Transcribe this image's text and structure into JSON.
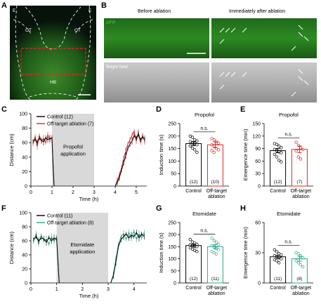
{
  "panels": {
    "A": {
      "letter": "A",
      "labels": {
        "e_left": "E",
        "e_right": "E",
        "ot_left": "OT",
        "ot_right": "OT",
        "hb": "HB"
      }
    },
    "B": {
      "letter": "B",
      "col_before": "Before ablation",
      "col_after": "Immediately after ablation",
      "row_gfp": "GFP",
      "row_bf": "Bright field"
    },
    "C": {
      "letter": "C"
    },
    "D": {
      "letter": "D"
    },
    "E": {
      "letter": "E"
    },
    "F": {
      "letter": "F"
    },
    "G": {
      "letter": "G"
    },
    "H": {
      "letter": "H"
    }
  },
  "colors": {
    "gfp": "#3aa52f",
    "control": "#000000",
    "propofol_ablation": "#e02424",
    "etomidate_ablation": "#2aa88a",
    "shade": "#d9d9d9"
  },
  "chart_data": [
    {
      "id": "C",
      "type": "line",
      "xlabel": "Time (h)",
      "ylabel": "Distance (cm)",
      "xticks": [
        0,
        1,
        2,
        3,
        4,
        5
      ],
      "yticks": [
        0,
        20,
        40,
        60,
        80,
        100
      ],
      "xlim": [
        0,
        5.5
      ],
      "ylim": [
        0,
        100
      ],
      "shade": {
        "x": [
          1,
          3
        ],
        "label": [
          "Propofol",
          "application"
        ]
      },
      "series": [
        {
          "name": "Control (12)",
          "color": "#000000",
          "x": [
            0.1,
            0.2,
            0.3,
            0.4,
            0.5,
            0.6,
            0.7,
            0.8,
            0.9,
            1.0,
            1.05,
            1.1,
            4.0,
            4.1,
            4.2,
            4.3,
            4.4,
            4.5,
            4.6,
            4.7,
            4.8,
            4.9,
            5.0,
            5.1,
            5.2,
            5.3,
            5.4
          ],
          "y": [
            62,
            65,
            60,
            66,
            63,
            61,
            67,
            64,
            66,
            65,
            30,
            0,
            0,
            5,
            12,
            22,
            32,
            42,
            52,
            58,
            62,
            70,
            66,
            72,
            64,
            68,
            65
          ]
        },
        {
          "name": "Off-target ablation (7)",
          "color": "#e02424",
          "x": [
            0.1,
            0.2,
            0.3,
            0.4,
            0.5,
            0.6,
            0.7,
            0.8,
            0.9,
            1.0,
            1.05,
            1.1,
            4.0,
            4.1,
            4.2,
            4.3,
            4.4,
            4.5,
            4.6,
            4.7,
            4.8,
            4.9,
            5.0,
            5.1,
            5.2,
            5.3,
            5.4
          ],
          "y": [
            58,
            68,
            55,
            70,
            62,
            66,
            60,
            71,
            64,
            68,
            32,
            0,
            0,
            8,
            15,
            25,
            38,
            48,
            58,
            64,
            70,
            76,
            62,
            74,
            60,
            70,
            62
          ]
        }
      ]
    },
    {
      "id": "D",
      "type": "bar",
      "title": "Propofol",
      "ylabel": "Induction time (s)",
      "yticks": [
        0,
        50,
        100,
        150,
        200,
        250
      ],
      "ylim": [
        0,
        250
      ],
      "categories": [
        [
          "Control"
        ],
        [
          "Off-target",
          "ablation"
        ]
      ],
      "counts": [
        "(12)",
        "(10)"
      ],
      "values": [
        170,
        165
      ],
      "errors": [
        8,
        12
      ],
      "colors": [
        "#000000",
        "#e02424"
      ],
      "sig": "n.s.",
      "points": [
        [
          200,
          195,
          185,
          180,
          178,
          172,
          170,
          165,
          160,
          152,
          145,
          135
        ],
        [
          190,
          185,
          178,
          172,
          165,
          160,
          150,
          145,
          142,
          135
        ]
      ]
    },
    {
      "id": "E",
      "type": "bar",
      "title": "Propofol",
      "ylabel": "Emergence time (min)",
      "yticks": [
        0,
        30,
        60,
        90,
        120,
        150
      ],
      "ylim": [
        0,
        150
      ],
      "categories": [
        [
          "Control"
        ],
        [
          "Off-target",
          "ablation"
        ]
      ],
      "counts": [
        "(12)",
        "(7)"
      ],
      "values": [
        85,
        88
      ],
      "errors": [
        5,
        8
      ],
      "colors": [
        "#000000",
        "#e02424"
      ],
      "sig": "n.s.",
      "points": [
        [
          102,
          100,
          96,
          92,
          88,
          85,
          82,
          80,
          76,
          70,
          62,
          58
        ],
        [
          105,
          98,
          92,
          88,
          84,
          70,
          65
        ]
      ]
    },
    {
      "id": "F",
      "type": "line",
      "xlabel": "Time (h)",
      "ylabel": "Distance (cm)",
      "xticks": [
        0,
        1,
        2,
        3,
        4
      ],
      "yticks": [
        0,
        20,
        40,
        60,
        80,
        100
      ],
      "xlim": [
        0,
        4.5
      ],
      "ylim": [
        0,
        100
      ],
      "shade": {
        "x": [
          1,
          3
        ],
        "label": [
          "Etomidate",
          "application"
        ]
      },
      "series": [
        {
          "name": "Control (11)",
          "color": "#000000",
          "x": [
            0.1,
            0.2,
            0.3,
            0.4,
            0.5,
            0.6,
            0.7,
            0.8,
            0.9,
            1.0,
            1.05,
            1.1,
            3.1,
            3.2,
            3.3,
            3.4,
            3.5,
            3.6,
            3.7,
            3.8,
            3.9,
            4.0,
            4.1,
            4.2,
            4.3,
            4.4
          ],
          "y": [
            62,
            66,
            60,
            64,
            63,
            58,
            65,
            60,
            64,
            62,
            30,
            0,
            0,
            10,
            30,
            52,
            62,
            66,
            70,
            64,
            68,
            66,
            72,
            64,
            70,
            66
          ]
        },
        {
          "name": "Off-target ablation (8)",
          "color": "#2aa88a",
          "x": [
            0.1,
            0.2,
            0.3,
            0.4,
            0.5,
            0.6,
            0.7,
            0.8,
            0.9,
            1.0,
            1.05,
            1.1,
            3.1,
            3.2,
            3.3,
            3.4,
            3.5,
            3.6,
            3.7,
            3.8,
            3.9,
            4.0,
            4.1,
            4.2,
            4.3,
            4.4
          ],
          "y": [
            58,
            70,
            56,
            68,
            60,
            62,
            55,
            66,
            60,
            66,
            32,
            0,
            0,
            12,
            34,
            55,
            66,
            70,
            62,
            72,
            64,
            74,
            62,
            70,
            64,
            72
          ]
        }
      ]
    },
    {
      "id": "G",
      "type": "bar",
      "title": "Etomidate",
      "ylabel": "Induction time (s)",
      "yticks": [
        0,
        50,
        100,
        150,
        200,
        250
      ],
      "ylim": [
        0,
        250
      ],
      "categories": [
        [
          "Control"
        ],
        [
          "Off-target",
          "ablation"
        ]
      ],
      "counts": [
        "(12)",
        "(11)"
      ],
      "values": [
        155,
        150
      ],
      "errors": [
        6,
        9
      ],
      "colors": [
        "#000000",
        "#2aa88a"
      ],
      "sig": "n.s.",
      "points": [
        [
          180,
          170,
          165,
          160,
          158,
          155,
          152,
          150,
          145,
          140,
          135,
          130
        ],
        [
          185,
          175,
          168,
          160,
          155,
          150,
          142,
          138,
          130,
          125,
          120
        ]
      ]
    },
    {
      "id": "H",
      "type": "bar",
      "title": "Etomidate",
      "ylabel": "Emergence time (min)",
      "yticks": [
        0,
        30,
        60
      ],
      "ylim": [
        0,
        60
      ],
      "categories": [
        [
          "Control"
        ],
        [
          "Off-target",
          "ablation"
        ]
      ],
      "counts": [
        "(11)",
        "(8)"
      ],
      "values": [
        26,
        24
      ],
      "errors": [
        1.5,
        2.5
      ],
      "colors": [
        "#000000",
        "#2aa88a"
      ],
      "sig": "n.s.",
      "points": [
        [
          33,
          31,
          29,
          28,
          27,
          26,
          25,
          24,
          23,
          22,
          20
        ],
        [
          30,
          29,
          27,
          25,
          22,
          20,
          18,
          16
        ]
      ]
    }
  ]
}
